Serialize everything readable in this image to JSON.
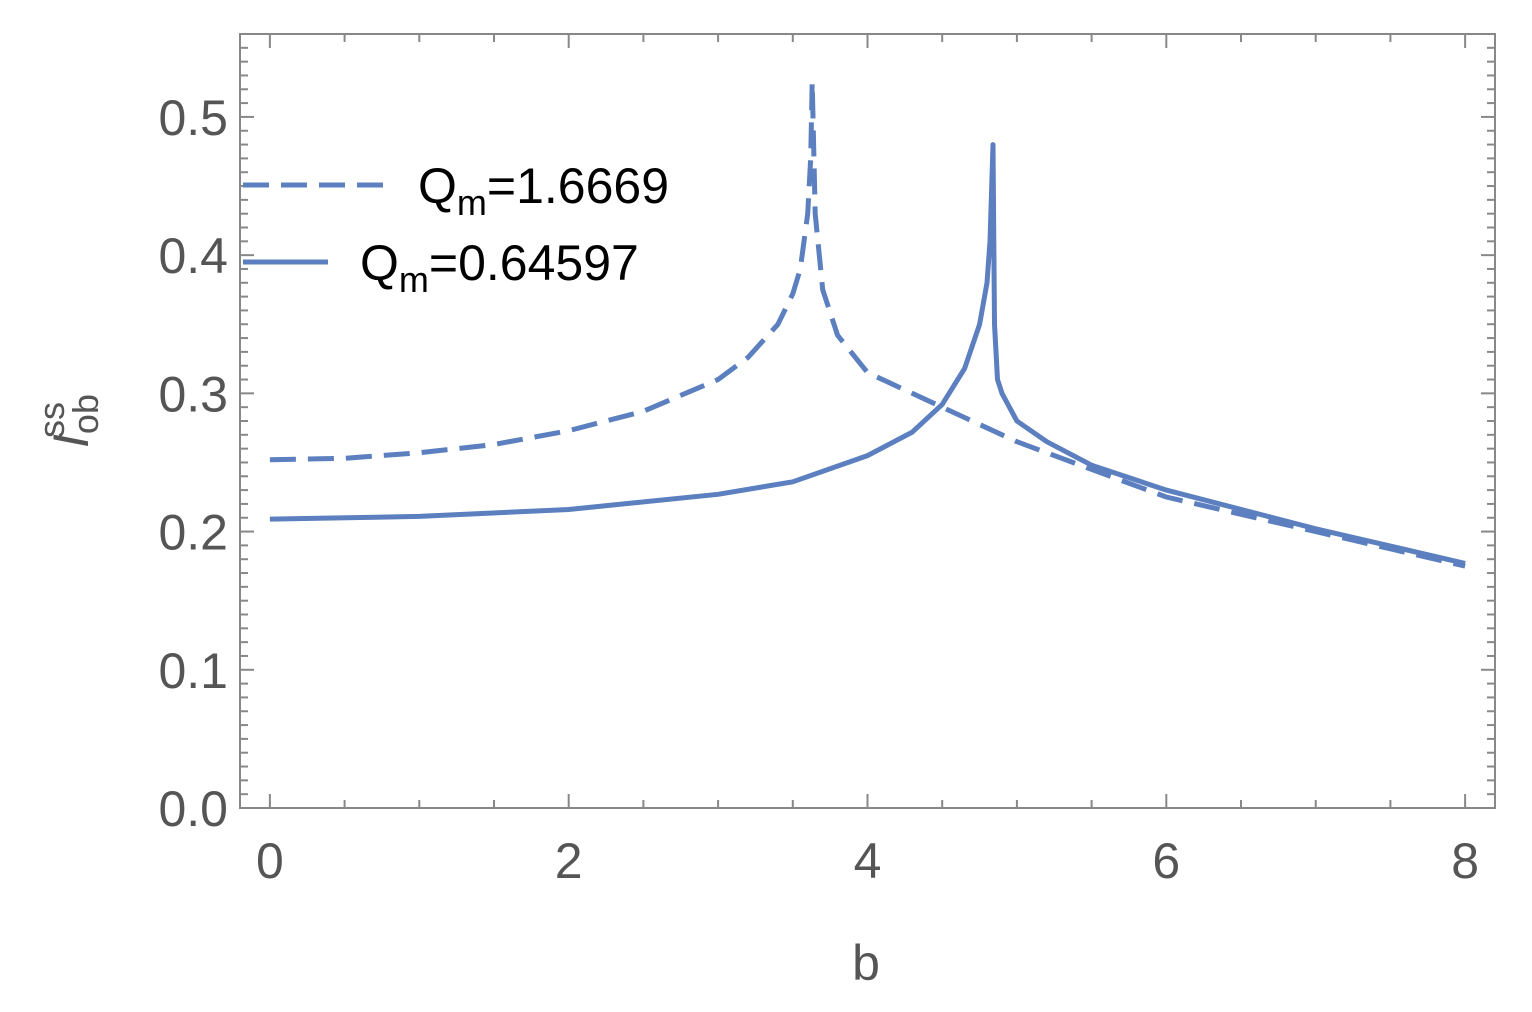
{
  "chart_data": {
    "type": "line",
    "xlabel": "b",
    "ylabel": {
      "main": "I",
      "sub": "ob",
      "sup": "ss"
    },
    "xlim": [
      -0.2,
      8.2
    ],
    "ylim": [
      0.0,
      0.56
    ],
    "x_ticks": [
      "0",
      "2",
      "4",
      "6",
      "8"
    ],
    "y_ticks": [
      "0.0",
      "0.1",
      "0.2",
      "0.3",
      "0.4",
      "0.5"
    ],
    "x_tick_values": [
      0,
      2,
      4,
      6,
      8
    ],
    "y_tick_values": [
      0.0,
      0.1,
      0.2,
      0.3,
      0.4,
      0.5
    ],
    "legend_position": "top-left",
    "color": "#5b7fbf",
    "series": [
      {
        "label_main": "Q",
        "label_sub": "m",
        "label_rest": "=1.6669",
        "dashed": true,
        "x": [
          0,
          0.5,
          1,
          1.5,
          2,
          2.5,
          3,
          3.2,
          3.4,
          3.5,
          3.55,
          3.6,
          3.62,
          3.63,
          3.65,
          3.7,
          3.8,
          4.0,
          4.5,
          5.0,
          5.5,
          6.0,
          7.0,
          8.0
        ],
        "y": [
          0.252,
          0.253,
          0.257,
          0.263,
          0.273,
          0.287,
          0.31,
          0.326,
          0.35,
          0.372,
          0.39,
          0.43,
          0.47,
          0.525,
          0.43,
          0.375,
          0.342,
          0.315,
          0.29,
          0.265,
          0.245,
          0.225,
          0.2,
          0.175
        ]
      },
      {
        "label_main": "Q",
        "label_sub": "m",
        "label_rest": "=0.64597",
        "dashed": false,
        "x": [
          0,
          1,
          2,
          3,
          3.5,
          4.0,
          4.3,
          4.5,
          4.65,
          4.75,
          4.8,
          4.82,
          4.84,
          4.85,
          4.87,
          4.9,
          5.0,
          5.2,
          5.5,
          6.0,
          7.0,
          8.0
        ],
        "y": [
          0.209,
          0.211,
          0.216,
          0.227,
          0.236,
          0.255,
          0.272,
          0.292,
          0.318,
          0.35,
          0.38,
          0.41,
          0.48,
          0.35,
          0.31,
          0.3,
          0.28,
          0.265,
          0.248,
          0.23,
          0.202,
          0.177
        ]
      }
    ]
  }
}
